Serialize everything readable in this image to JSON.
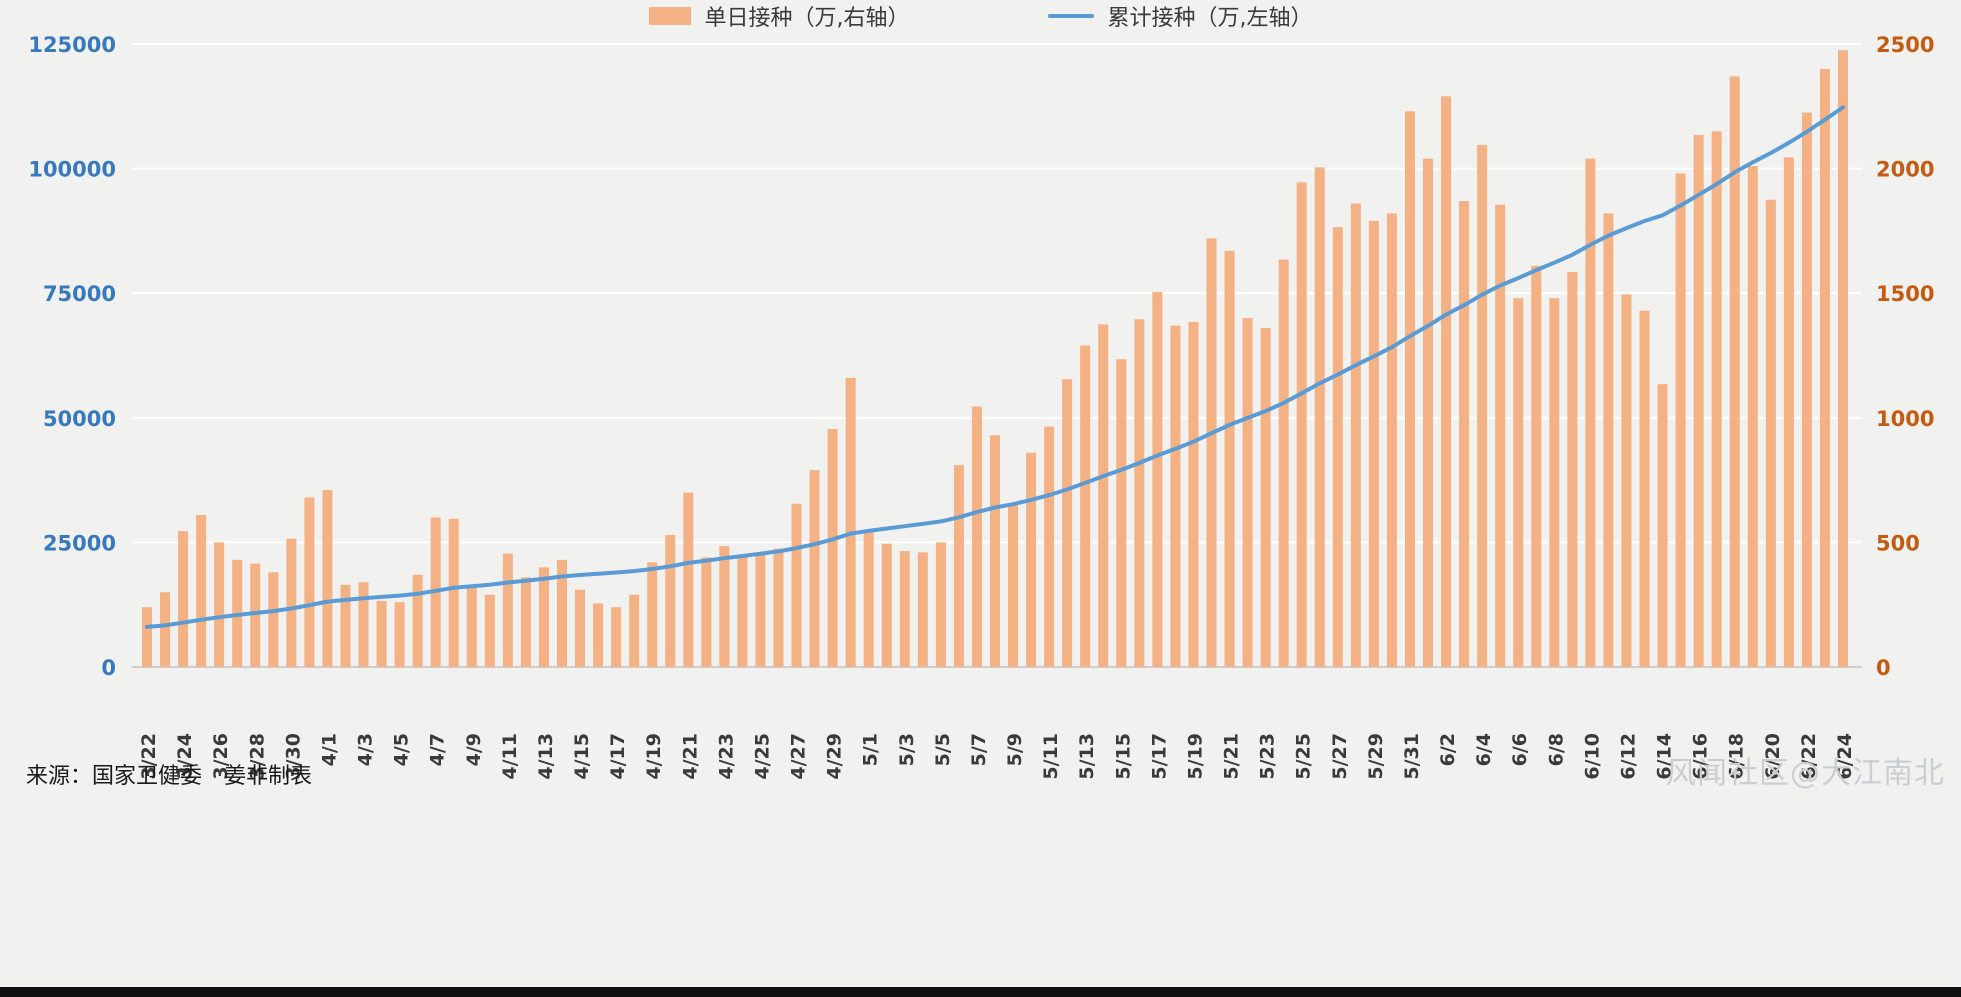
{
  "chart_data": {
    "type": "combo",
    "x": [
      "3/22",
      "3/23",
      "3/24",
      "3/25",
      "3/26",
      "3/27",
      "3/28",
      "3/29",
      "3/30",
      "3/31",
      "4/1",
      "4/2",
      "4/3",
      "4/4",
      "4/5",
      "4/6",
      "4/7",
      "4/8",
      "4/9",
      "4/10",
      "4/11",
      "4/12",
      "4/13",
      "4/14",
      "4/15",
      "4/16",
      "4/17",
      "4/18",
      "4/19",
      "4/20",
      "4/21",
      "4/22",
      "4/23",
      "4/24",
      "4/25",
      "4/26",
      "4/27",
      "4/28",
      "4/29",
      "4/30",
      "5/1",
      "5/2",
      "5/3",
      "5/4",
      "5/5",
      "5/6",
      "5/7",
      "5/8",
      "5/9",
      "5/10",
      "5/11",
      "5/12",
      "5/13",
      "5/14",
      "5/15",
      "5/16",
      "5/17",
      "5/18",
      "5/19",
      "5/20",
      "5/21",
      "5/22",
      "5/23",
      "5/24",
      "5/25",
      "5/26",
      "5/27",
      "5/28",
      "5/29",
      "5/30",
      "5/31",
      "6/1",
      "6/2",
      "6/3",
      "6/4",
      "6/5",
      "6/6",
      "6/7",
      "6/8",
      "6/9",
      "6/10",
      "6/11",
      "6/12",
      "6/13",
      "6/14",
      "6/15",
      "6/16",
      "6/17",
      "6/18",
      "6/19",
      "6/20",
      "6/21",
      "6/22",
      "6/23",
      "6/24"
    ],
    "x_tick_every": 2,
    "series": [
      {
        "name": "单日接种（万,右轴）",
        "type": "bar",
        "axis": "right",
        "color": "#F4B183",
        "values": [
          240,
          300,
          545,
          610,
          500,
          430,
          415,
          380,
          515,
          680,
          710,
          330,
          340,
          265,
          260,
          370,
          600,
          595,
          330,
          290,
          455,
          360,
          400,
          430,
          310,
          255,
          240,
          290,
          420,
          530,
          700,
          440,
          485,
          445,
          460,
          475,
          655,
          790,
          955,
          1160,
          540,
          495,
          465,
          460,
          500,
          810,
          1045,
          930,
          655,
          860,
          965,
          1155,
          1290,
          1375,
          1235,
          1395,
          1505,
          1370,
          1385,
          1720,
          1670,
          1400,
          1360,
          1635,
          1945,
          2005,
          1765,
          1860,
          1790,
          1820,
          2230,
          2040,
          2290,
          1870,
          2095,
          1855,
          1480,
          1610,
          1480,
          1585,
          2040,
          1820,
          1495,
          1430,
          1135,
          1980,
          2135,
          2150,
          2370,
          2010,
          1875,
          2045,
          2225,
          2400,
          2475
        ]
      },
      {
        "name": "累计接种（万,左轴）",
        "type": "line",
        "axis": "left",
        "color": "#5B9BD5",
        "values": [
          8040,
          8340,
          8885,
          9495,
          9995,
          10425,
          10840,
          11220,
          11735,
          12415,
          13125,
          13455,
          13795,
          14060,
          14320,
          14690,
          15290,
          15885,
          16215,
          16505,
          16960,
          17320,
          17720,
          18150,
          18460,
          18715,
          18955,
          19245,
          19665,
          20195,
          20895,
          21335,
          21820,
          22265,
          22725,
          23200,
          23855,
          24645,
          25600,
          26760,
          27300,
          27795,
          28260,
          28720,
          29220,
          30030,
          31075,
          32005,
          32660,
          33520,
          34485,
          35640,
          36930,
          38305,
          39540,
          40935,
          42440,
          43810,
          45195,
          46915,
          48585,
          49985,
          51345,
          52980,
          54925,
          56930,
          58695,
          60555,
          62345,
          64165,
          66395,
          68435,
          70725,
          72595,
          74690,
          76545,
          78025,
          79635,
          81115,
          82700,
          84740,
          86560,
          88055,
          89485,
          90620,
          92600,
          94735,
          96885,
          99255,
          101265,
          103140,
          105185,
          107410,
          109810,
          112285
        ]
      }
    ],
    "left_axis": {
      "min": 0,
      "max": 125000,
      "ticks": [
        0,
        25000,
        50000,
        75000,
        100000,
        125000
      ],
      "label_color": "#3879BD"
    },
    "right_axis": {
      "min": 0,
      "max": 2500,
      "ticks": [
        0,
        500,
        1000,
        1500,
        2000,
        2500
      ],
      "label_color": "#C55A11"
    },
    "x_label_color": "#3a3a3a",
    "grid": true,
    "grid_color": "#ffffff",
    "baseline_color": "#c2c2c2",
    "legend_position": "bottom"
  },
  "legend": {
    "bar_label": "单日接种（万,右轴）",
    "line_label": "累计接种（万,左轴）"
  },
  "footer": {
    "source": "来源：国家卫健委　姜非制表",
    "watermark": "风闻社区@大江南北"
  }
}
